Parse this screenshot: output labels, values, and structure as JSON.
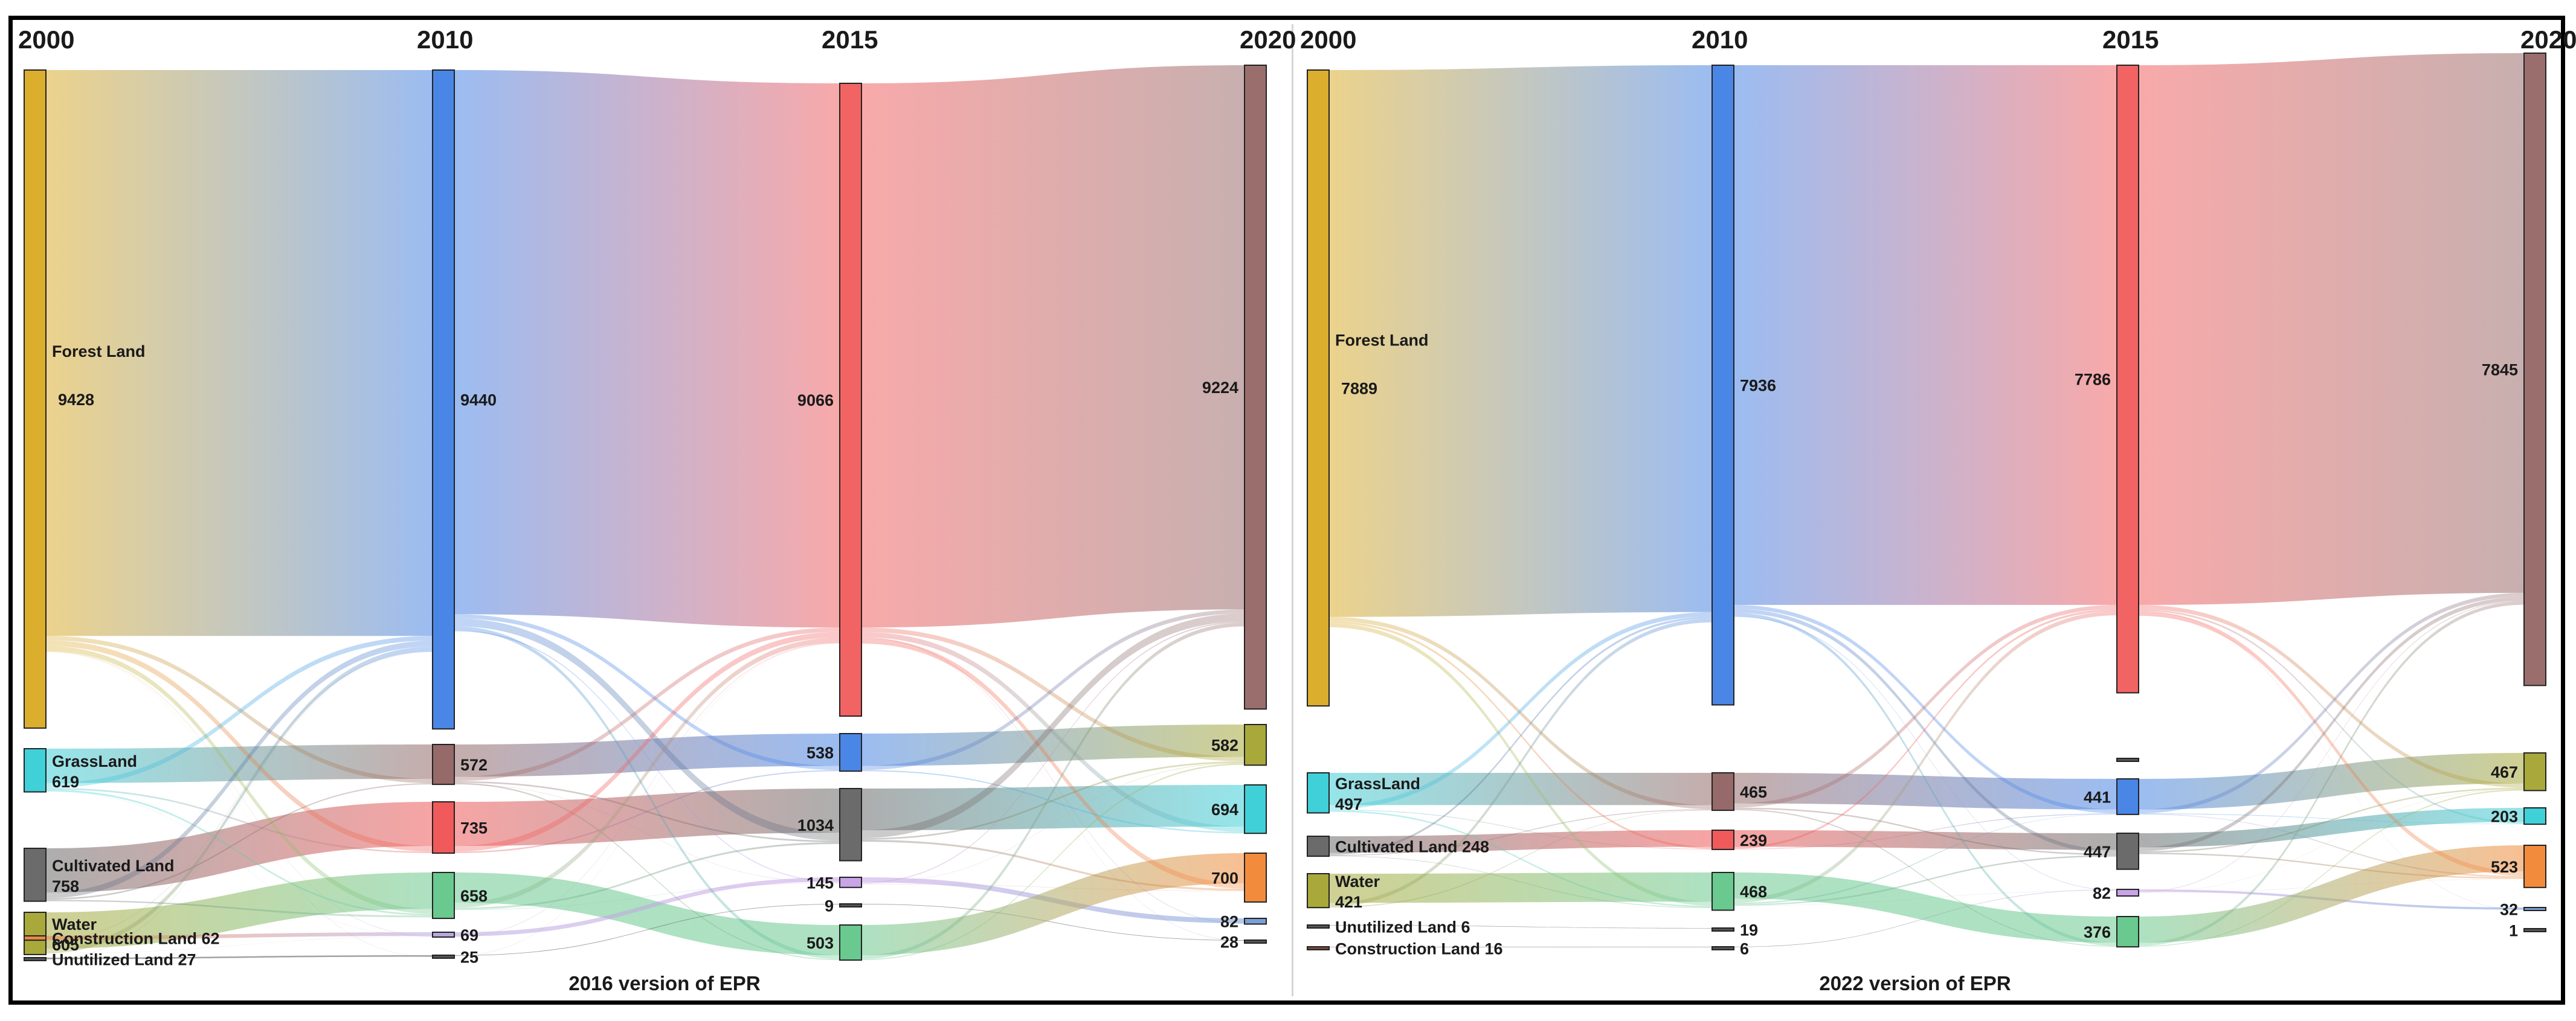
{
  "chart_data": [
    {
      "type": "sankey",
      "caption": "2016 version of EPR",
      "years": [
        "2000",
        "2010",
        "2015",
        "2020"
      ],
      "nodes": {
        "2000": [
          {
            "name": "Forest Land",
            "value": 9428,
            "text": "Forest Land",
            "value_text": "9428",
            "color": "#dcae2e"
          },
          {
            "name": "GrassLand",
            "value": 619,
            "text": "GrassLand",
            "value_text": "619",
            "color": "#3fd0d8"
          },
          {
            "name": "Cultivated Land",
            "value": 758,
            "text": "Cultivated Land",
            "value_text": "758",
            "color": "#6b6b6b"
          },
          {
            "name": "Water",
            "value": 605,
            "text": "Water",
            "value_text": "605",
            "color": "#a8a93a"
          },
          {
            "name": "Construction Land",
            "value": 62,
            "text": "Construction Land 62",
            "color": "#e8874a"
          },
          {
            "name": "Unutilized Land",
            "value": 27,
            "text": "Unutilized Land  27",
            "color": "#555555"
          }
        ],
        "2010": [
          {
            "name": "Forest Land",
            "value": 9440,
            "text": "9440",
            "color": "#4a86e6"
          },
          {
            "name": "GrassLand",
            "value": 572,
            "text": "572",
            "color": "#956a68"
          },
          {
            "name": "Cultivated Land",
            "value": 735,
            "text": "735",
            "color": "#f05a5a"
          },
          {
            "name": "Water",
            "value": 658,
            "text": "658",
            "color": "#6ac98f"
          },
          {
            "name": "Construction Land",
            "value": 69,
            "text": "69",
            "color": "#b9a7e0"
          },
          {
            "name": "Unutilized Land",
            "value": 25,
            "text": "25",
            "color": "#555555"
          }
        ],
        "2015": [
          {
            "name": "Forest Land",
            "value": 9066,
            "text": "9066",
            "color": "#f26363"
          },
          {
            "name": "GrassLand",
            "value": 538,
            "text": "538",
            "color": "#4a86e6"
          },
          {
            "name": "Cultivated Land",
            "value": 1034,
            "text": "1034",
            "color": "#6b6b6b"
          },
          {
            "name": "Construction Land",
            "value": 145,
            "text": "145",
            "color": "#c9a4e6"
          },
          {
            "name": "Unutilized Land",
            "value": 9,
            "text": "9",
            "color": "#555555"
          },
          {
            "name": "Water",
            "value": 503,
            "text": "503",
            "color": "#6ac98f"
          }
        ],
        "2020": [
          {
            "name": "Forest Land",
            "value": 9224,
            "text": "9224",
            "color": "#9b6e6e"
          },
          {
            "name": "GrassLand",
            "value": 582,
            "text": "582",
            "color": "#a8a93a"
          },
          {
            "name": "Cultivated Land",
            "value": 694,
            "text": "694",
            "color": "#3fd0d8"
          },
          {
            "name": "Water",
            "value": 700,
            "text": "700",
            "color": "#f28c3c"
          },
          {
            "name": "Construction Land",
            "value": 82,
            "text": "82",
            "color": "#7a9fd6"
          },
          {
            "name": "Unutilized Land",
            "value": 28,
            "text": "28",
            "color": "#555555"
          }
        ]
      }
    },
    {
      "type": "sankey",
      "caption": "2022 version of  EPR",
      "years": [
        "2000",
        "2010",
        "2015",
        "2020"
      ],
      "nodes": {
        "2000": [
          {
            "name": "Forest Land",
            "value": 7889,
            "text": "Forest Land",
            "value_text": "7889",
            "color": "#dcae2e"
          },
          {
            "name": "GrassLand",
            "value": 497,
            "text": "GrassLand",
            "value_text": "497",
            "color": "#3fd0d8"
          },
          {
            "name": "Cultivated Land",
            "value": 248,
            "text": "Cultivated Land 248",
            "color": "#6b6b6b"
          },
          {
            "name": "Water",
            "value": 421,
            "text": "Water",
            "value_text": "421",
            "color": "#a8a93a"
          },
          {
            "name": "Unutilized Land",
            "value": 6,
            "text": "Unutilized Land 6",
            "color": "#555555"
          },
          {
            "name": "Construction Land",
            "value": 16,
            "text": "Construction Land 16",
            "color": "#7a4a3a"
          }
        ],
        "2010": [
          {
            "name": "Forest Land",
            "value": 7936,
            "text": "7936",
            "color": "#4a86e6"
          },
          {
            "name": "GrassLand",
            "value": 465,
            "text": "465",
            "color": "#956a68"
          },
          {
            "name": "Cultivated Land",
            "value": 239,
            "text": "239",
            "color": "#f05a5a"
          },
          {
            "name": "Water",
            "value": 468,
            "text": "468",
            "color": "#6ac98f"
          },
          {
            "name": "Unutilized Land",
            "value": 19,
            "text": "19",
            "color": "#555555"
          },
          {
            "name": "Construction Land",
            "value": 6,
            "text": "6",
            "color": "#555555"
          }
        ],
        "2015": [
          {
            "name": "Forest Land",
            "value": 7786,
            "text": "7786",
            "color": "#f26363"
          },
          {
            "name": "Unutilized Land",
            "value": 1,
            "text": "",
            "color": "#555555"
          },
          {
            "name": "GrassLand",
            "value": 441,
            "text": "441",
            "color": "#4a86e6"
          },
          {
            "name": "Cultivated Land",
            "value": 447,
            "text": "447",
            "color": "#6b6b6b"
          },
          {
            "name": "Construction Land",
            "value": 82,
            "text": "82",
            "color": "#c9a4e6"
          },
          {
            "name": "Water",
            "value": 376,
            "text": "376",
            "color": "#6ac98f"
          }
        ],
        "2020": [
          {
            "name": "Forest Land",
            "value": 7845,
            "text": "7845",
            "color": "#9b6e6e"
          },
          {
            "name": "GrassLand",
            "value": 467,
            "text": "467",
            "color": "#a8a93a"
          },
          {
            "name": "Cultivated Land",
            "value": 203,
            "text": "203",
            "color": "#3fd0d8"
          },
          {
            "name": "Water",
            "value": 523,
            "text": "523",
            "color": "#f28c3c"
          },
          {
            "name": "Construction Land",
            "value": 32,
            "text": "32",
            "color": "#7a9fd6"
          },
          {
            "name": "Unutilized Land",
            "value": 1,
            "text": "1",
            "color": "#555555"
          }
        ]
      }
    }
  ]
}
